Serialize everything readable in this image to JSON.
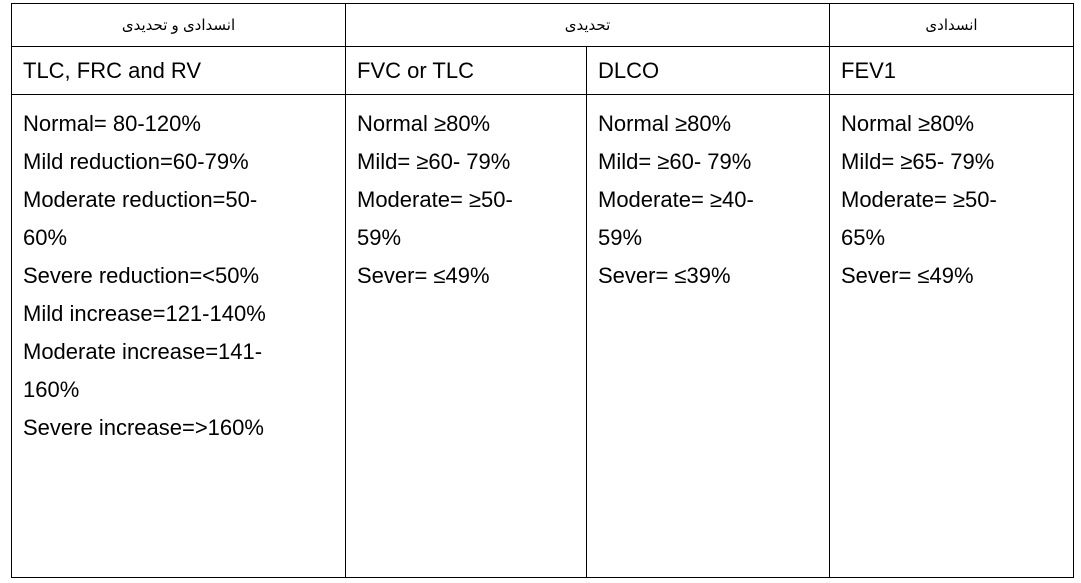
{
  "headers": {
    "obstructive_restrictive": "انسدادی و تحدیدی",
    "restrictive": "تحدیدی",
    "obstructive": "انسدادی"
  },
  "parameters": {
    "lung_volumes": "TLC, FRC and RV",
    "fvc": "FVC or TLC",
    "dlco": "DLCO",
    "fev1": "FEV1"
  },
  "columns": {
    "lung_volumes": [
      "Normal= 80-120%",
      "Mild reduction=60-79%",
      "Moderate reduction=50-",
      "60%",
      "Severe reduction=<50%",
      "Mild increase=121-140%",
      "Moderate increase=141-",
      "160%",
      "Severe increase=>160%"
    ],
    "fvc": [
      "Normal ≥80%",
      "Mild= ≥60- 79%",
      "Moderate= ≥50-",
      "59%",
      "Sever= ≤49%"
    ],
    "dlco": [
      "Normal ≥80%",
      "Mild= ≥60- 79%",
      "Moderate= ≥40-",
      "59%",
      "Sever= ≤39%"
    ],
    "fev1": [
      "Normal ≥80%",
      "Mild= ≥65- 79%",
      "Moderate= ≥50-",
      "65%",
      "Sever= ≤49%"
    ]
  }
}
